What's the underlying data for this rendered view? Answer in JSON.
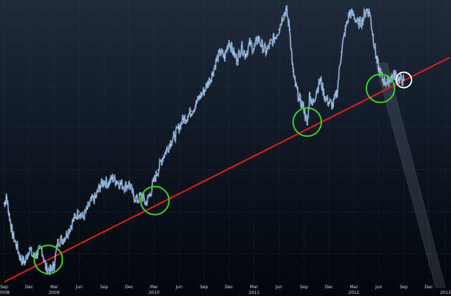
{
  "chart_data": {
    "type": "line",
    "title": "",
    "xlabel": "",
    "ylabel": "",
    "grid": true,
    "legend": "none",
    "colors": {
      "price_line": "#8fb8e8",
      "price_glow": "#e8f2ff",
      "trendline": "#e02020",
      "support_circle": "#3ed62a",
      "current_circle": "#ffffff",
      "grid": "#3a4a63",
      "background_top": "#1f2a3a",
      "background_bottom": "#03060a"
    },
    "x_ticks": [
      {
        "label": "Sep",
        "year": "2008",
        "t": 0.0
      },
      {
        "label": "Dec",
        "t": 3.0
      },
      {
        "label": "Mar",
        "year": "2009",
        "t": 6.0
      },
      {
        "label": "Jun",
        "t": 9.0
      },
      {
        "label": "Sep",
        "t": 12.0
      },
      {
        "label": "Dec",
        "t": 15.0
      },
      {
        "label": "Mar",
        "year": "2010",
        "t": 18.0
      },
      {
        "label": "Jun",
        "t": 21.0
      },
      {
        "label": "Sep",
        "t": 24.0
      },
      {
        "label": "Dec",
        "t": 27.0
      },
      {
        "label": "Mar",
        "year": "2011",
        "t": 30.0
      },
      {
        "label": "Jun",
        "t": 33.0
      },
      {
        "label": "Sep",
        "t": 36.0
      },
      {
        "label": "Dec",
        "t": 39.0
      },
      {
        "label": "Mar",
        "year": "2012",
        "t": 42.0
      },
      {
        "label": "Jun",
        "t": 45.0
      },
      {
        "label": "Sep",
        "t": 48.0
      },
      {
        "label": "Dec",
        "t": 51.0
      },
      {
        "label": "",
        "year": "2013",
        "t": 53.0
      }
    ],
    "x_range": [
      0,
      53.5
    ],
    "y_range": [
      0,
      100
    ],
    "y_gridlines": [
      10,
      25,
      40,
      55,
      70,
      85
    ],
    "series": [
      {
        "values": [
          [
            0.0,
            28
          ],
          [
            0.3,
            30
          ],
          [
            0.6,
            24
          ],
          [
            1.0,
            17
          ],
          [
            1.5,
            13
          ],
          [
            2.0,
            8
          ],
          [
            2.5,
            7
          ],
          [
            3.0,
            12
          ],
          [
            3.5,
            9
          ],
          [
            4.0,
            10
          ],
          [
            4.5,
            12
          ],
          [
            5.0,
            5
          ],
          [
            5.6,
            4
          ],
          [
            6.0,
            6
          ],
          [
            6.5,
            15
          ],
          [
            7.0,
            15
          ],
          [
            7.5,
            17
          ],
          [
            8.0,
            20
          ],
          [
            8.5,
            23
          ],
          [
            9.0,
            25
          ],
          [
            9.5,
            23
          ],
          [
            10.0,
            26
          ],
          [
            10.5,
            29
          ],
          [
            11.0,
            30
          ],
          [
            11.5,
            34
          ],
          [
            12.0,
            36
          ],
          [
            12.5,
            35
          ],
          [
            13.0,
            37
          ],
          [
            13.5,
            36
          ],
          [
            14.0,
            35
          ],
          [
            14.5,
            34
          ],
          [
            15.0,
            35
          ],
          [
            15.5,
            31
          ],
          [
            16.0,
            29
          ],
          [
            16.5,
            31
          ],
          [
            17.0,
            28
          ],
          [
            17.5,
            31
          ],
          [
            18.0,
            36
          ],
          [
            18.5,
            40
          ],
          [
            19.0,
            44
          ],
          [
            19.5,
            47
          ],
          [
            20.0,
            50
          ],
          [
            20.5,
            52
          ],
          [
            21.0,
            55
          ],
          [
            21.5,
            58
          ],
          [
            22.0,
            59
          ],
          [
            22.5,
            61
          ],
          [
            23.0,
            63
          ],
          [
            23.5,
            66
          ],
          [
            24.0,
            68
          ],
          [
            24.5,
            71
          ],
          [
            25.0,
            74
          ],
          [
            25.5,
            79
          ],
          [
            26.0,
            82
          ],
          [
            26.5,
            80
          ],
          [
            27.0,
            86
          ],
          [
            27.5,
            82
          ],
          [
            28.0,
            79
          ],
          [
            28.5,
            84
          ],
          [
            29.0,
            81
          ],
          [
            29.5,
            85
          ],
          [
            30.0,
            83
          ],
          [
            30.5,
            87
          ],
          [
            31.0,
            84
          ],
          [
            31.5,
            82
          ],
          [
            32.0,
            85
          ],
          [
            32.5,
            87
          ],
          [
            33.0,
            90
          ],
          [
            33.5,
            95
          ],
          [
            33.9,
            97
          ],
          [
            34.3,
            90
          ],
          [
            34.7,
            75
          ],
          [
            35.0,
            70
          ],
          [
            35.5,
            65
          ],
          [
            36.0,
            62
          ],
          [
            36.4,
            56
          ],
          [
            36.7,
            67
          ],
          [
            37.0,
            63
          ],
          [
            37.5,
            68
          ],
          [
            38.0,
            72
          ],
          [
            38.5,
            66
          ],
          [
            39.0,
            64
          ],
          [
            39.5,
            63
          ],
          [
            40.0,
            68
          ],
          [
            40.5,
            82
          ],
          [
            41.0,
            90
          ],
          [
            41.5,
            96
          ],
          [
            42.0,
            95
          ],
          [
            42.5,
            92
          ],
          [
            43.0,
            93
          ],
          [
            43.5,
            97
          ],
          [
            43.9,
            96
          ],
          [
            44.3,
            88
          ],
          [
            44.7,
            80
          ],
          [
            45.0,
            76
          ],
          [
            45.5,
            72
          ],
          [
            46.0,
            71
          ],
          [
            46.5,
            73
          ],
          [
            47.0,
            74
          ],
          [
            47.5,
            72
          ],
          [
            48.0,
            72
          ]
        ]
      }
    ],
    "trendline": {
      "from": [
        0.0,
        0.0
      ],
      "to": [
        53.5,
        80.0
      ]
    },
    "highlights": [
      {
        "t": 5.3,
        "y": 8,
        "kind": "support"
      },
      {
        "t": 18.1,
        "y": 29,
        "kind": "support"
      },
      {
        "t": 36.4,
        "y": 57,
        "kind": "support"
      },
      {
        "t": 45.2,
        "y": 69,
        "kind": "support"
      },
      {
        "t": 48.0,
        "y": 72,
        "kind": "current"
      }
    ]
  }
}
